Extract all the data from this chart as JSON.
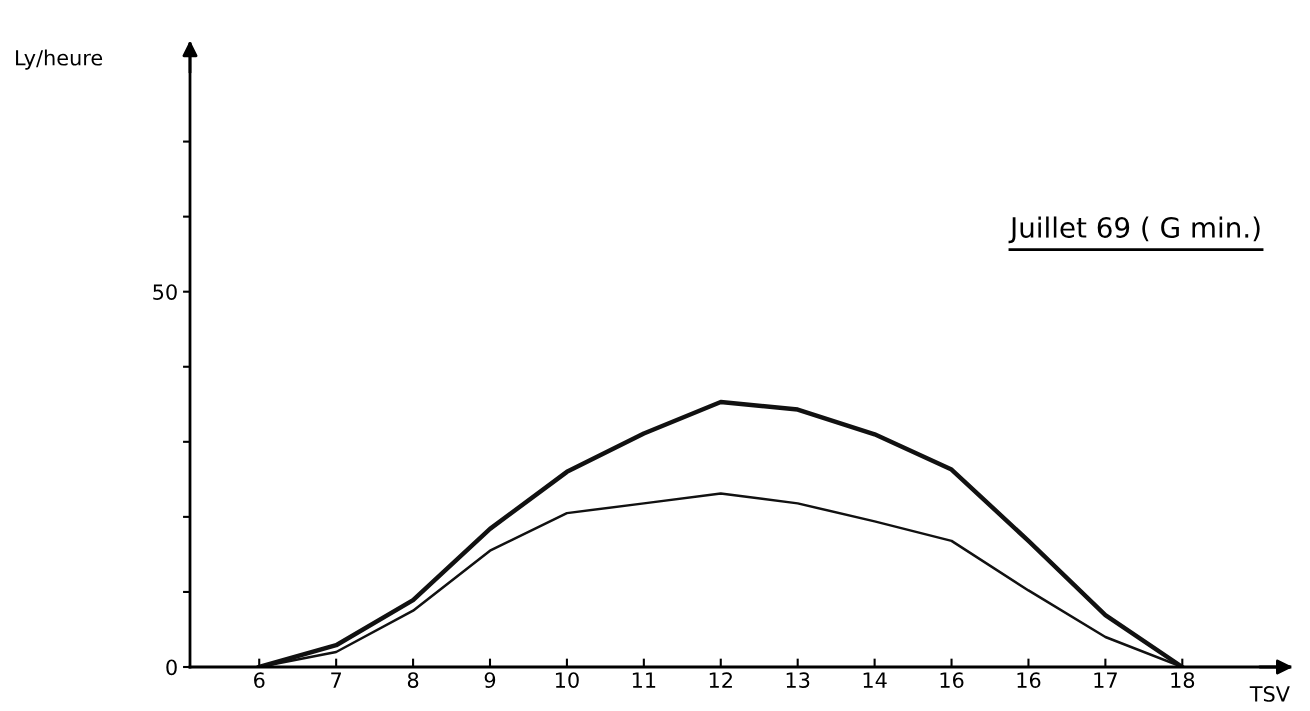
{
  "chart_data": {
    "type": "line",
    "title": "Juillet 69 ( G min.)",
    "ylabel": "Ly/heure",
    "xlabel": "TSV",
    "categories": [
      "6",
      "7",
      "8",
      "9",
      "10",
      "11",
      "12",
      "13",
      "14",
      "16",
      "16",
      "17",
      "18"
    ],
    "series": [
      {
        "color": "#111111",
        "values": [
          0,
          2.9,
          8.9,
          18.4,
          26,
          31.1,
          35.3,
          34.3,
          31,
          26.3,
          16.8,
          6.9,
          0
        ]
      },
      {
        "color": "#111111",
        "values": [
          0,
          2,
          7.5,
          15.5,
          20.5,
          21.8,
          23.1,
          21.8,
          19.4,
          16.8,
          10.2,
          4,
          0
        ]
      }
    ],
    "ylim": [
      0,
      83
    ],
    "yticks": [
      0,
      {
        "value": 10,
        "label": null
      },
      {
        "value": 20,
        "label": null
      },
      {
        "value": 30,
        "label": null
      },
      {
        "value": 40,
        "label": null
      },
      50,
      {
        "value": 60,
        "label": null
      },
      {
        "value": 70,
        "label": null
      }
    ],
    "grid": false,
    "legend": false,
    "marker": "none",
    "line_style": "solid"
  }
}
